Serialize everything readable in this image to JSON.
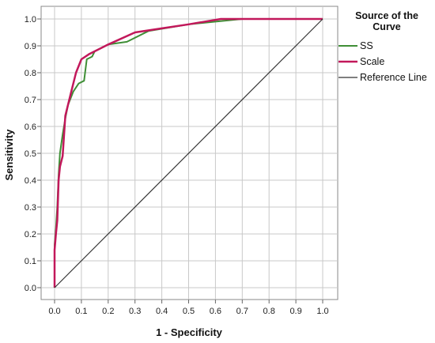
{
  "chart_data": {
    "type": "line",
    "xlabel": "1 - Specificity",
    "ylabel": "Sensitivity",
    "xlim": [
      0,
      1
    ],
    "ylim": [
      0,
      1
    ],
    "xticks": [
      "0.0",
      "0.1",
      "0.2",
      "0.3",
      "0.4",
      "0.5",
      "0.6",
      "0.7",
      "0.8",
      "0.9",
      "1.0"
    ],
    "yticks": [
      "0.0",
      "0.1",
      "0.2",
      "0.3",
      "0.4",
      "0.5",
      "0.6",
      "0.7",
      "0.8",
      "0.9",
      "1.0"
    ],
    "grid": true,
    "legend": {
      "title": "Source of the Curve",
      "placement": "right"
    },
    "series": [
      {
        "name": "SS",
        "color": "#3f8f36",
        "points": [
          [
            0,
            0
          ],
          [
            0,
            0.16
          ],
          [
            0.005,
            0.22
          ],
          [
            0.01,
            0.3
          ],
          [
            0.015,
            0.42
          ],
          [
            0.02,
            0.5
          ],
          [
            0.03,
            0.57
          ],
          [
            0.04,
            0.63
          ],
          [
            0.05,
            0.68
          ],
          [
            0.07,
            0.73
          ],
          [
            0.09,
            0.76
          ],
          [
            0.11,
            0.77
          ],
          [
            0.12,
            0.85
          ],
          [
            0.14,
            0.86
          ],
          [
            0.15,
            0.88
          ],
          [
            0.2,
            0.905
          ],
          [
            0.27,
            0.915
          ],
          [
            0.35,
            0.955
          ],
          [
            0.5,
            0.98
          ],
          [
            0.6,
            0.99
          ],
          [
            0.7,
            1.0
          ],
          [
            1.0,
            1.0
          ]
        ]
      },
      {
        "name": "Scale",
        "color": "#c2185b",
        "points": [
          [
            0,
            0
          ],
          [
            0,
            0.14
          ],
          [
            0.005,
            0.2
          ],
          [
            0.01,
            0.25
          ],
          [
            0.015,
            0.4
          ],
          [
            0.02,
            0.45
          ],
          [
            0.03,
            0.49
          ],
          [
            0.04,
            0.64
          ],
          [
            0.06,
            0.72
          ],
          [
            0.08,
            0.8
          ],
          [
            0.1,
            0.85
          ],
          [
            0.13,
            0.87
          ],
          [
            0.2,
            0.905
          ],
          [
            0.3,
            0.95
          ],
          [
            0.4,
            0.965
          ],
          [
            0.5,
            0.98
          ],
          [
            0.62,
            1.0
          ],
          [
            1.0,
            1.0
          ]
        ]
      },
      {
        "name": "Reference Line",
        "color": "#333333",
        "points": [
          [
            0,
            0
          ],
          [
            1,
            1
          ]
        ]
      }
    ]
  }
}
